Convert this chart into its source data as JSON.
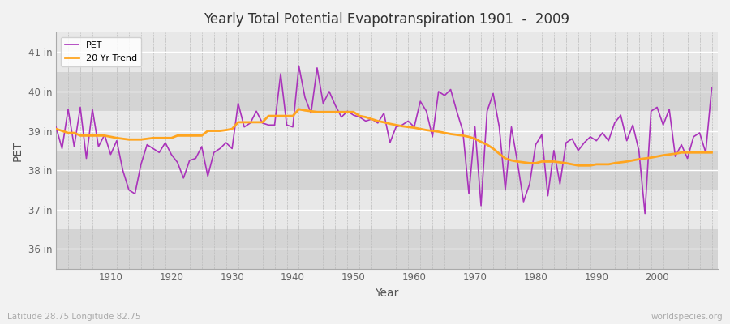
{
  "title": "Yearly Total Potential Evapotranspiration 1901  -  2009",
  "ylabel": "PET",
  "xlabel": "Year",
  "bottom_left_label": "Latitude 28.75 Longitude 82.75",
  "bottom_right_label": "worldspecies.org",
  "pet_color": "#AA33BB",
  "trend_color": "#FFA520",
  "plot_bg_color": "#DCDCDC",
  "plot_bg_band_light": "#E8E8E8",
  "plot_bg_band_dark": "#D4D4D4",
  "fig_bg_color": "#F2F2F2",
  "ylim": [
    35.5,
    41.5
  ],
  "yticks": [
    36,
    37,
    38,
    39,
    40,
    41
  ],
  "ytick_labels": [
    "36 in",
    "37 in",
    "38 in",
    "39 in",
    "40 in",
    "41 in"
  ],
  "start_year": 1901,
  "pet_values": [
    39.1,
    38.55,
    39.55,
    38.6,
    39.6,
    38.3,
    39.55,
    38.6,
    38.9,
    38.4,
    38.75,
    38.0,
    37.5,
    37.4,
    38.15,
    38.65,
    38.55,
    38.45,
    38.7,
    38.4,
    38.2,
    37.8,
    38.25,
    38.3,
    38.6,
    37.85,
    38.45,
    38.55,
    38.7,
    38.55,
    39.7,
    39.1,
    39.2,
    39.5,
    39.2,
    39.15,
    39.15,
    40.45,
    39.15,
    39.1,
    40.65,
    39.85,
    39.45,
    40.6,
    39.7,
    40.0,
    39.65,
    39.35,
    39.5,
    39.4,
    39.35,
    39.25,
    39.3,
    39.2,
    39.45,
    38.7,
    39.1,
    39.15,
    39.25,
    39.1,
    39.75,
    39.5,
    38.85,
    40.0,
    39.9,
    40.05,
    39.5,
    39.0,
    37.4,
    39.1,
    37.1,
    39.5,
    39.95,
    39.1,
    37.5,
    39.1,
    38.2,
    37.2,
    37.65,
    38.65,
    38.9,
    37.35,
    38.5,
    37.65,
    38.7,
    38.8,
    38.5,
    38.7,
    38.85,
    38.75,
    38.95,
    38.75,
    39.2,
    39.4,
    38.75,
    39.15,
    38.5,
    36.9,
    39.5,
    39.6,
    39.15,
    39.55,
    38.35,
    38.65,
    38.3,
    38.85,
    38.95,
    38.45,
    40.1
  ],
  "trend_values": [
    39.05,
    39.0,
    38.95,
    38.95,
    38.88,
    38.88,
    38.88,
    38.88,
    38.88,
    38.85,
    38.82,
    38.8,
    38.78,
    38.78,
    38.78,
    38.8,
    38.82,
    38.82,
    38.82,
    38.82,
    38.88,
    38.88,
    38.88,
    38.88,
    38.88,
    39.0,
    39.0,
    39.0,
    39.02,
    39.05,
    39.22,
    39.22,
    39.22,
    39.22,
    39.22,
    39.38,
    39.38,
    39.38,
    39.38,
    39.38,
    39.55,
    39.52,
    39.5,
    39.48,
    39.48,
    39.48,
    39.48,
    39.48,
    39.48,
    39.48,
    39.38,
    39.35,
    39.3,
    39.25,
    39.22,
    39.18,
    39.15,
    39.12,
    39.1,
    39.08,
    39.05,
    39.02,
    39.0,
    38.98,
    38.95,
    38.92,
    38.9,
    38.88,
    38.85,
    38.8,
    38.72,
    38.65,
    38.55,
    38.42,
    38.3,
    38.25,
    38.22,
    38.2,
    38.18,
    38.18,
    38.22,
    38.22,
    38.22,
    38.2,
    38.18,
    38.15,
    38.12,
    38.12,
    38.12,
    38.15,
    38.15,
    38.15,
    38.18,
    38.2,
    38.22,
    38.25,
    38.28,
    38.3,
    38.32,
    38.35,
    38.38,
    38.4,
    38.42,
    38.45,
    38.45,
    38.45,
    38.45,
    38.45,
    38.45
  ]
}
